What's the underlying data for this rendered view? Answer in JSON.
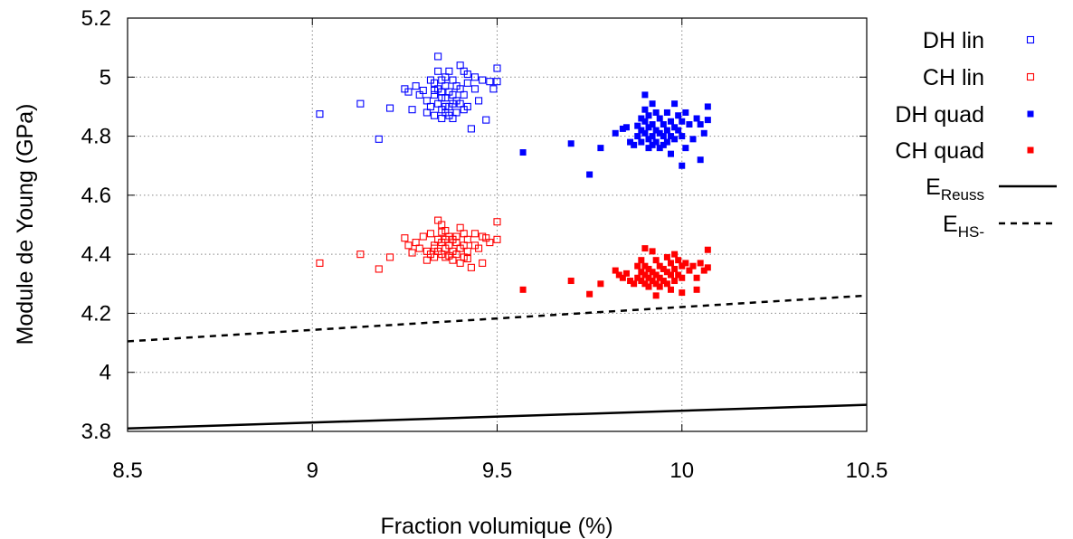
{
  "chart_data": {
    "type": "scatter",
    "title": "",
    "xlabel": "Fraction volumique (%)",
    "ylabel": "Module de Young (GPa)",
    "xlim": [
      8.5,
      10.5
    ],
    "ylim": [
      3.8,
      5.2
    ],
    "xticks": [
      "8.5",
      "9",
      "9.5",
      "10",
      "10.5"
    ],
    "yticks": [
      "3.8",
      "4",
      "4.2",
      "4.4",
      "4.6",
      "4.8",
      "5",
      "5.2"
    ],
    "grid": true,
    "legend_position": "right-outside",
    "series": [
      {
        "name": "DH lin",
        "marker": "open-square",
        "color": "#0000ff",
        "points": [
          [
            9.02,
            4.875
          ],
          [
            9.13,
            4.91
          ],
          [
            9.18,
            4.79
          ],
          [
            9.21,
            4.895
          ],
          [
            9.25,
            4.96
          ],
          [
            9.26,
            4.95
          ],
          [
            9.27,
            4.89
          ],
          [
            9.28,
            4.97
          ],
          [
            9.29,
            4.94
          ],
          [
            9.3,
            4.955
          ],
          [
            9.31,
            4.92
          ],
          [
            9.31,
            4.88
          ],
          [
            9.32,
            4.99
          ],
          [
            9.32,
            4.9
          ],
          [
            9.33,
            4.94
          ],
          [
            9.33,
            4.87
          ],
          [
            9.33,
            4.98
          ],
          [
            9.34,
            5.07
          ],
          [
            9.34,
            5.02
          ],
          [
            9.34,
            4.96
          ],
          [
            9.34,
            4.91
          ],
          [
            9.35,
            4.99
          ],
          [
            9.35,
            4.95
          ],
          [
            9.35,
            4.89
          ],
          [
            9.35,
            4.86
          ],
          [
            9.36,
            5.0
          ],
          [
            9.36,
            4.97
          ],
          [
            9.36,
            4.93
          ],
          [
            9.36,
            4.88
          ],
          [
            9.37,
            5.02
          ],
          [
            9.37,
            4.95
          ],
          [
            9.37,
            4.9
          ],
          [
            9.37,
            4.87
          ],
          [
            9.38,
            4.99
          ],
          [
            9.38,
            4.94
          ],
          [
            9.38,
            4.86
          ],
          [
            9.39,
            4.97
          ],
          [
            9.39,
            4.92
          ],
          [
            9.39,
            4.88
          ],
          [
            9.4,
            5.04
          ],
          [
            9.4,
            4.96
          ],
          [
            9.4,
            4.91
          ],
          [
            9.41,
            5.02
          ],
          [
            9.41,
            4.94
          ],
          [
            9.41,
            4.89
          ],
          [
            9.42,
            4.98
          ],
          [
            9.42,
            4.9
          ],
          [
            9.43,
            4.825
          ],
          [
            9.44,
            5.0
          ],
          [
            9.44,
            4.96
          ],
          [
            9.45,
            4.92
          ],
          [
            9.46,
            4.99
          ],
          [
            9.47,
            4.855
          ],
          [
            9.48,
            4.985
          ],
          [
            9.49,
            4.96
          ],
          [
            9.5,
            5.03
          ],
          [
            9.5,
            4.985
          ],
          [
            9.33,
            4.955
          ],
          [
            9.36,
            4.9
          ],
          [
            9.38,
            4.91
          ],
          [
            9.42,
            5.01
          ],
          [
            9.35,
            4.93
          ]
        ]
      },
      {
        "name": "CH lin",
        "marker": "open-square",
        "color": "#ff0000",
        "points": [
          [
            9.02,
            4.37
          ],
          [
            9.13,
            4.4
          ],
          [
            9.18,
            4.35
          ],
          [
            9.21,
            4.39
          ],
          [
            9.25,
            4.455
          ],
          [
            9.26,
            4.43
          ],
          [
            9.27,
            4.405
          ],
          [
            9.28,
            4.44
          ],
          [
            9.29,
            4.42
          ],
          [
            9.3,
            4.46
          ],
          [
            9.31,
            4.41
          ],
          [
            9.31,
            4.38
          ],
          [
            9.32,
            4.47
          ],
          [
            9.32,
            4.4
          ],
          [
            9.33,
            4.43
          ],
          [
            9.33,
            4.39
          ],
          [
            9.34,
            4.515
          ],
          [
            9.34,
            4.45
          ],
          [
            9.34,
            4.41
          ],
          [
            9.35,
            4.5
          ],
          [
            9.35,
            4.44
          ],
          [
            9.35,
            4.4
          ],
          [
            9.36,
            4.48
          ],
          [
            9.36,
            4.42
          ],
          [
            9.36,
            4.39
          ],
          [
            9.37,
            4.46
          ],
          [
            9.37,
            4.43
          ],
          [
            9.37,
            4.395
          ],
          [
            9.38,
            4.45
          ],
          [
            9.38,
            4.41
          ],
          [
            9.38,
            4.38
          ],
          [
            9.39,
            4.44
          ],
          [
            9.39,
            4.4
          ],
          [
            9.4,
            4.49
          ],
          [
            9.4,
            4.42
          ],
          [
            9.4,
            4.37
          ],
          [
            9.41,
            4.47
          ],
          [
            9.41,
            4.43
          ],
          [
            9.41,
            4.39
          ],
          [
            9.42,
            4.45
          ],
          [
            9.42,
            4.41
          ],
          [
            9.43,
            4.355
          ],
          [
            9.44,
            4.47
          ],
          [
            9.44,
            4.43
          ],
          [
            9.45,
            4.42
          ],
          [
            9.46,
            4.46
          ],
          [
            9.46,
            4.37
          ],
          [
            9.47,
            4.455
          ],
          [
            9.48,
            4.44
          ],
          [
            9.5,
            4.51
          ],
          [
            9.5,
            4.45
          ],
          [
            9.33,
            4.42
          ],
          [
            9.36,
            4.45
          ],
          [
            9.39,
            4.46
          ],
          [
            9.42,
            4.385
          ],
          [
            9.35,
            4.475
          ]
        ]
      },
      {
        "name": "DH quad",
        "marker": "filled-square",
        "color": "#0000ff",
        "points": [
          [
            9.57,
            4.745
          ],
          [
            9.7,
            4.775
          ],
          [
            9.75,
            4.67
          ],
          [
            9.78,
            4.76
          ],
          [
            9.82,
            4.81
          ],
          [
            9.84,
            4.825
          ],
          [
            9.85,
            4.83
          ],
          [
            9.86,
            4.78
          ],
          [
            9.87,
            4.77
          ],
          [
            9.88,
            4.835
          ],
          [
            9.88,
            4.8
          ],
          [
            9.89,
            4.86
          ],
          [
            9.89,
            4.82
          ],
          [
            9.89,
            4.78
          ],
          [
            9.9,
            4.94
          ],
          [
            9.9,
            4.89
          ],
          [
            9.9,
            4.85
          ],
          [
            9.9,
            4.81
          ],
          [
            9.91,
            4.87
          ],
          [
            9.91,
            4.83
          ],
          [
            9.91,
            4.79
          ],
          [
            9.91,
            4.76
          ],
          [
            9.92,
            4.91
          ],
          [
            9.92,
            4.84
          ],
          [
            9.92,
            4.8
          ],
          [
            9.92,
            4.77
          ],
          [
            9.93,
            4.88
          ],
          [
            9.93,
            4.82
          ],
          [
            9.93,
            4.78
          ],
          [
            9.94,
            4.86
          ],
          [
            9.94,
            4.81
          ],
          [
            9.94,
            4.76
          ],
          [
            9.95,
            4.84
          ],
          [
            9.95,
            4.8
          ],
          [
            9.95,
            4.77
          ],
          [
            9.96,
            4.88
          ],
          [
            9.96,
            4.82
          ],
          [
            9.96,
            4.78
          ],
          [
            9.97,
            4.85
          ],
          [
            9.97,
            4.8
          ],
          [
            9.97,
            4.74
          ],
          [
            9.98,
            4.91
          ],
          [
            9.98,
            4.83
          ],
          [
            9.98,
            4.79
          ],
          [
            9.99,
            4.87
          ],
          [
            9.99,
            4.82
          ],
          [
            10.0,
            4.85
          ],
          [
            10.0,
            4.8
          ],
          [
            10.0,
            4.7
          ],
          [
            10.01,
            4.88
          ],
          [
            10.01,
            4.76
          ],
          [
            10.02,
            4.84
          ],
          [
            10.03,
            4.79
          ],
          [
            10.04,
            4.86
          ],
          [
            10.05,
            4.72
          ],
          [
            10.05,
            4.84
          ],
          [
            10.07,
            4.9
          ],
          [
            10.07,
            4.855
          ],
          [
            10.06,
            4.81
          ]
        ]
      },
      {
        "name": "CH quad",
        "marker": "filled-square",
        "color": "#ff0000",
        "points": [
          [
            9.57,
            4.28
          ],
          [
            9.7,
            4.31
          ],
          [
            9.75,
            4.265
          ],
          [
            9.78,
            4.3
          ],
          [
            9.82,
            4.345
          ],
          [
            9.83,
            4.33
          ],
          [
            9.84,
            4.32
          ],
          [
            9.85,
            4.335
          ],
          [
            9.86,
            4.31
          ],
          [
            9.87,
            4.3
          ],
          [
            9.88,
            4.36
          ],
          [
            9.88,
            4.32
          ],
          [
            9.89,
            4.38
          ],
          [
            9.89,
            4.34
          ],
          [
            9.89,
            4.31
          ],
          [
            9.9,
            4.42
          ],
          [
            9.9,
            4.36
          ],
          [
            9.9,
            4.33
          ],
          [
            9.9,
            4.3
          ],
          [
            9.91,
            4.35
          ],
          [
            9.91,
            4.32
          ],
          [
            9.91,
            4.29
          ],
          [
            9.92,
            4.41
          ],
          [
            9.92,
            4.34
          ],
          [
            9.92,
            4.31
          ],
          [
            9.93,
            4.38
          ],
          [
            9.93,
            4.33
          ],
          [
            9.93,
            4.3
          ],
          [
            9.93,
            4.26
          ],
          [
            9.94,
            4.36
          ],
          [
            9.94,
            4.32
          ],
          [
            9.94,
            4.29
          ],
          [
            9.95,
            4.35
          ],
          [
            9.95,
            4.31
          ],
          [
            9.96,
            4.39
          ],
          [
            9.96,
            4.34
          ],
          [
            9.96,
            4.3
          ],
          [
            9.97,
            4.37
          ],
          [
            9.97,
            4.33
          ],
          [
            9.97,
            4.28
          ],
          [
            9.98,
            4.4
          ],
          [
            9.98,
            4.35
          ],
          [
            9.98,
            4.31
          ],
          [
            9.99,
            4.38
          ],
          [
            9.99,
            4.33
          ],
          [
            10.0,
            4.36
          ],
          [
            10.0,
            4.32
          ],
          [
            10.0,
            4.27
          ],
          [
            10.01,
            4.37
          ],
          [
            10.02,
            4.345
          ],
          [
            10.03,
            4.36
          ],
          [
            10.04,
            4.32
          ],
          [
            10.04,
            4.28
          ],
          [
            10.05,
            4.37
          ],
          [
            10.06,
            4.345
          ],
          [
            10.07,
            4.415
          ],
          [
            10.07,
            4.355
          ]
        ]
      },
      {
        "name": "E",
        "subscript": "Reuss",
        "style": "solid-line",
        "color": "#000000",
        "points": [
          [
            8.5,
            3.81
          ],
          [
            10.5,
            3.89
          ]
        ]
      },
      {
        "name": "E",
        "subscript": "HS-",
        "style": "dashed-line",
        "color": "#000000",
        "points": [
          [
            8.5,
            4.105
          ],
          [
            10.5,
            4.26
          ]
        ]
      }
    ]
  }
}
